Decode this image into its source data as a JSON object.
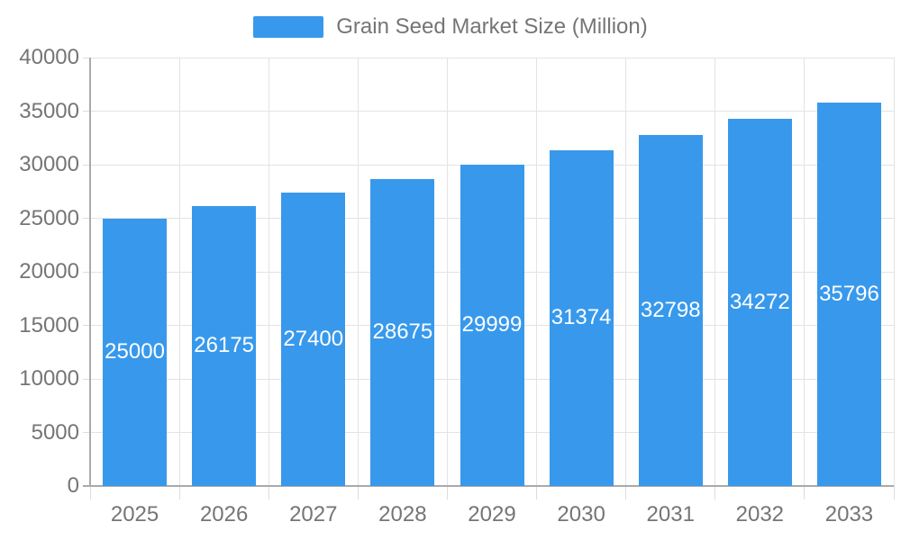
{
  "legend": {
    "label": "Grain Seed Market Size (Million)"
  },
  "chart_data": {
    "type": "bar",
    "title": "Grain Seed Market Size (Million)",
    "series_name": "Grain Seed Market Size (Million)",
    "categories": [
      "2025",
      "2026",
      "2027",
      "2028",
      "2029",
      "2030",
      "2031",
      "2032",
      "2033"
    ],
    "values": [
      25000,
      26175,
      27400,
      28675,
      29999,
      31374,
      32798,
      34272,
      35796
    ],
    "xlabel": "",
    "ylabel": "",
    "ylim": [
      0,
      40000
    ],
    "y_ticks": [
      0,
      5000,
      10000,
      15000,
      20000,
      25000,
      30000,
      35000,
      40000
    ],
    "grid": true,
    "legend_position": "top-center",
    "value_labels": "centered-inside-bars"
  },
  "colors": {
    "bar": "#3899EC",
    "axis_line": "#aaaaaa",
    "gridline": "#e3e3e3",
    "tick": "#dcdcdc",
    "axis_text": "#757575",
    "value_text": "#ffffff",
    "background": "#ffffff"
  }
}
